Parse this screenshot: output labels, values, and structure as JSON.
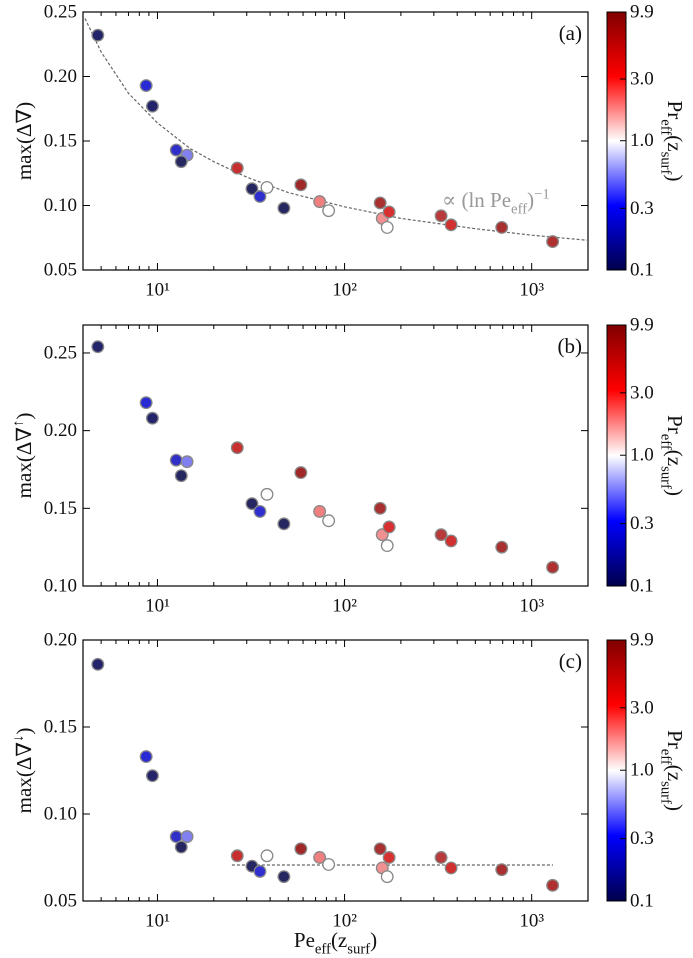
{
  "chart_data": [
    {
      "type": "scatter",
      "panel_label": "(a)",
      "y_label_parts": [
        {
          "text": "max(Δ∇",
          "pos": "normal"
        },
        {
          "text": ")",
          "pos": "normal"
        }
      ],
      "x": [
        4.8,
        8.7,
        9.4,
        12.6,
        14.4,
        13.4,
        26.7,
        32,
        35.3,
        38.5,
        47.4,
        58.4,
        73.6,
        82.2,
        155,
        159,
        173,
        169,
        328,
        371,
        692,
        1294
      ],
      "xlim": [
        4,
        2000
      ],
      "xscale": "log",
      "xticks": [
        {
          "value": 10,
          "label": "10¹"
        },
        {
          "value": 100,
          "label": "10²"
        },
        {
          "value": 1000,
          "label": "10³"
        }
      ],
      "xminor": [
        5,
        6,
        7,
        8,
        9,
        20,
        30,
        40,
        50,
        60,
        70,
        80,
        90,
        200,
        300,
        400,
        500,
        600,
        700,
        800,
        900,
        2000
      ],
      "ylim": [
        0.05,
        0.25
      ],
      "yticks": [
        0.05,
        {
          "value": 0.1,
          "label": "0.10"
        },
        0.15,
        {
          "value": 0.2,
          "label": "0.20"
        },
        0.25
      ],
      "series": [
        {
          "values": [
            0.232,
            0.193,
            0.177,
            0.143,
            0.139,
            0.134,
            0.129,
            0.113,
            0.107,
            0.114,
            0.098,
            0.116,
            0.103,
            0.096,
            0.102,
            0.09,
            0.095,
            0.083,
            0.092,
            0.085,
            0.083,
            0.072
          ],
          "colors": [
            "#24246b",
            "#2a2ad4",
            "#24246b",
            "#3030c8",
            "#8080f0",
            "#262660",
            "#c83030",
            "#262660",
            "#3030d0",
            "#ffffff",
            "#262660",
            "#a02828",
            "#f08080",
            "#ffffff",
            "#a83030",
            "#f09090",
            "#d83030",
            "#ffffff",
            "#b83a3a",
            "#d03030",
            "#a83030",
            "#b03030"
          ],
          "edgecolor": "#888888"
        },
        {
          "type": "line",
          "style": "dashed",
          "color": "#666666",
          "x": [
            4.1,
            5,
            7,
            10,
            15,
            20,
            30,
            50,
            100,
            200,
            500,
            1000,
            2000
          ],
          "values": [
            0.245,
            0.219,
            0.187,
            0.164,
            0.144,
            0.134,
            0.122,
            0.11,
            0.099,
            0.09,
            0.082,
            0.077,
            0.073
          ]
        }
      ],
      "annotation_parts": [
        {
          "text": "∝ (ln Pe",
          "pos": "normal"
        },
        {
          "text": "eff",
          "pos": "sub"
        },
        {
          "text": ")",
          "pos": "normal"
        },
        {
          "text": "−1",
          "pos": "sup"
        }
      ],
      "annotation_color": "#999999",
      "colorbar": {
        "lim": [
          0.1,
          9.9
        ],
        "log": true,
        "ticks": [
          0.1,
          0.3,
          {
            "value": 1,
            "label": "1.0"
          },
          {
            "value": 3,
            "label": "3.0"
          },
          9.9
        ],
        "colormap": [
          "#00004c",
          "#0000ff",
          "#ffffff",
          "#ff0000",
          "#800000"
        ],
        "label_parts": [
          {
            "text": "Pr",
            "pos": "normal"
          },
          {
            "text": "eff",
            "pos": "sub"
          },
          {
            "text": "(z",
            "pos": "normal"
          },
          {
            "text": "surf",
            "pos": "sub"
          },
          {
            "text": ")",
            "pos": "normal"
          }
        ]
      }
    },
    {
      "type": "scatter",
      "panel_label": "(b)",
      "y_label_parts": [
        {
          "text": "max(Δ∇",
          "pos": "normal"
        },
        {
          "text": "↑",
          "pos": "sup"
        },
        {
          "text": ")",
          "pos": "normal"
        }
      ],
      "x": [
        4.8,
        8.7,
        9.4,
        12.6,
        14.4,
        13.4,
        26.7,
        32,
        35.3,
        38.5,
        47.4,
        58.4,
        73.6,
        82.2,
        155,
        159,
        173,
        169,
        328,
        371,
        692,
        1294
      ],
      "xlim": [
        4,
        2000
      ],
      "xscale": "log",
      "xticks": [
        {
          "value": 10,
          "label": "10¹"
        },
        {
          "value": 100,
          "label": "10²"
        },
        {
          "value": 1000,
          "label": "10³"
        }
      ],
      "xminor": [
        5,
        6,
        7,
        8,
        9,
        20,
        30,
        40,
        50,
        60,
        70,
        80,
        90,
        200,
        300,
        400,
        500,
        600,
        700,
        800,
        900,
        2000
      ],
      "ylim": [
        0.1,
        0.268
      ],
      "yticks": [
        {
          "value": 0.1,
          "label": "0.10"
        },
        0.15,
        {
          "value": 0.2,
          "label": "0.20"
        },
        0.25
      ],
      "series": [
        {
          "values": [
            0.254,
            0.218,
            0.208,
            0.181,
            0.18,
            0.171,
            0.189,
            0.153,
            0.148,
            0.159,
            0.14,
            0.173,
            0.148,
            0.142,
            0.15,
            0.133,
            0.138,
            0.126,
            0.133,
            0.129,
            0.125,
            0.112
          ],
          "colors": [
            "#24246b",
            "#2a2ad4",
            "#24246b",
            "#3030c8",
            "#8080f0",
            "#262660",
            "#c83030",
            "#262660",
            "#3030d0",
            "#ffffff",
            "#262660",
            "#a02828",
            "#f08080",
            "#ffffff",
            "#a83030",
            "#f09090",
            "#d83030",
            "#ffffff",
            "#b83a3a",
            "#d03030",
            "#a83030",
            "#b03030"
          ],
          "edgecolor": "#888888"
        }
      ],
      "colorbar": {
        "lim": [
          0.1,
          9.9
        ],
        "log": true,
        "ticks": [
          0.1,
          0.3,
          {
            "value": 1,
            "label": "1.0"
          },
          {
            "value": 3,
            "label": "3.0"
          },
          9.9
        ],
        "colormap": [
          "#00004c",
          "#0000ff",
          "#ffffff",
          "#ff0000",
          "#800000"
        ],
        "label_parts": [
          {
            "text": "Pr",
            "pos": "normal"
          },
          {
            "text": "eff",
            "pos": "sub"
          },
          {
            "text": "(z",
            "pos": "normal"
          },
          {
            "text": "surf",
            "pos": "sub"
          },
          {
            "text": ")",
            "pos": "normal"
          }
        ]
      }
    },
    {
      "type": "scatter",
      "panel_label": "(c)",
      "y_label_parts": [
        {
          "text": "max(Δ∇",
          "pos": "normal"
        },
        {
          "text": "↓",
          "pos": "sup"
        },
        {
          "text": ")",
          "pos": "normal"
        }
      ],
      "x_label_parts": [
        {
          "text": "Pe",
          "pos": "normal"
        },
        {
          "text": "eff",
          "pos": "sub"
        },
        {
          "text": "(z",
          "pos": "normal"
        },
        {
          "text": "surf",
          "pos": "sub"
        },
        {
          "text": ")",
          "pos": "normal"
        }
      ],
      "x": [
        4.8,
        8.7,
        9.4,
        12.6,
        14.4,
        13.4,
        26.7,
        32,
        35.3,
        38.5,
        47.4,
        58.4,
        73.6,
        82.2,
        155,
        159,
        173,
        169,
        328,
        371,
        692,
        1294
      ],
      "xlim": [
        4,
        2000
      ],
      "xscale": "log",
      "xticks": [
        {
          "value": 10,
          "label": "10¹"
        },
        {
          "value": 100,
          "label": "10²"
        },
        {
          "value": 1000,
          "label": "10³"
        }
      ],
      "xminor": [
        5,
        6,
        7,
        8,
        9,
        20,
        30,
        40,
        50,
        60,
        70,
        80,
        90,
        200,
        300,
        400,
        500,
        600,
        700,
        800,
        900,
        2000
      ],
      "ylim": [
        0.05,
        0.2
      ],
      "yticks": [
        0.05,
        {
          "value": 0.1,
          "label": "0.10"
        },
        0.15,
        {
          "value": 0.2,
          "label": "0.20"
        }
      ],
      "series": [
        {
          "values": [
            0.186,
            0.133,
            0.122,
            0.087,
            0.087,
            0.081,
            0.076,
            0.07,
            0.067,
            0.076,
            0.064,
            0.08,
            0.075,
            0.071,
            0.08,
            0.069,
            0.075,
            0.064,
            0.075,
            0.069,
            0.068,
            0.059
          ],
          "colors": [
            "#24246b",
            "#2a2ad4",
            "#24246b",
            "#3030c8",
            "#8080f0",
            "#262660",
            "#c83030",
            "#262660",
            "#3030d0",
            "#ffffff",
            "#262660",
            "#a02828",
            "#f08080",
            "#ffffff",
            "#a83030",
            "#f09090",
            "#d83030",
            "#ffffff",
            "#b83a3a",
            "#d03030",
            "#a83030",
            "#b03030"
          ],
          "edgecolor": "#888888"
        },
        {
          "type": "line",
          "style": "dashed",
          "color": "#666666",
          "x": [
            25,
            1300
          ],
          "values": [
            0.0707,
            0.0707
          ]
        }
      ],
      "colorbar": {
        "lim": [
          0.1,
          9.9
        ],
        "log": true,
        "ticks": [
          0.1,
          0.3,
          {
            "value": 1,
            "label": "1.0"
          },
          {
            "value": 3,
            "label": "3.0"
          },
          9.9
        ],
        "colormap": [
          "#00004c",
          "#0000ff",
          "#ffffff",
          "#ff0000",
          "#800000"
        ],
        "label_parts": [
          {
            "text": "Pr",
            "pos": "normal"
          },
          {
            "text": "eff",
            "pos": "sub"
          },
          {
            "text": "(z",
            "pos": "normal"
          },
          {
            "text": "surf",
            "pos": "sub"
          },
          {
            "text": ")",
            "pos": "normal"
          }
        ]
      }
    }
  ]
}
